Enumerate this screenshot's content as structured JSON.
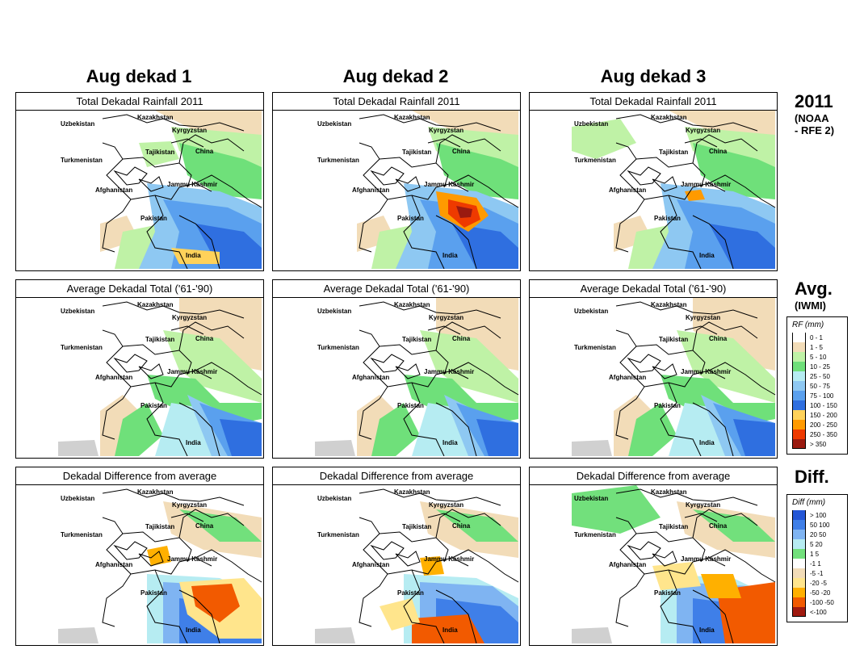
{
  "columns": [
    "Aug dekad 1",
    "Aug dekad 2",
    "Aug dekad 3"
  ],
  "rows": [
    {
      "key": "rfe",
      "title": "Total Dekadal Rainfall 2011"
    },
    {
      "key": "avg",
      "title": "Average Dekadal Total ('61-'90)"
    },
    {
      "key": "diff",
      "title": "Dekadal Difference from average"
    }
  ],
  "map_labels": [
    "Kazakhstan",
    "Uzbekistan",
    "Kyrgyzstan",
    "Tajikistan",
    "China",
    "Turkmenistan",
    "Afghanistan",
    "Jammu Kashmir",
    "Pakistan",
    "India"
  ],
  "side": {
    "rfe_title": "2011",
    "rfe_sub_1": "(NOAA",
    "rfe_sub_2": "- RFE 2)",
    "avg_title": "Avg.",
    "avg_sub": "(IWMI)",
    "diff_title": "Diff."
  },
  "rf_legend": {
    "title": "RF (mm)",
    "items": [
      {
        "label": "0 - 1",
        "color": "#ffffff"
      },
      {
        "label": "1 - 5",
        "color": "#f2dcb8"
      },
      {
        "label": "5 - 10",
        "color": "#bff2a6"
      },
      {
        "label": "10 - 25",
        "color": "#6fe07a"
      },
      {
        "label": "25 - 50",
        "color": "#b6ecf2"
      },
      {
        "label": "50 - 75",
        "color": "#8ec8f2"
      },
      {
        "label": "75 - 100",
        "color": "#5aa0ee"
      },
      {
        "label": "100 - 150",
        "color": "#2f6fe0"
      },
      {
        "label": "150 - 200",
        "color": "#ffd25a"
      },
      {
        "label": "200 - 250",
        "color": "#ff9a00"
      },
      {
        "label": "250 - 350",
        "color": "#ee3a00"
      },
      {
        "label": "> 350",
        "color": "#9a1a10"
      }
    ]
  },
  "diff_legend": {
    "title": "Diff (mm)",
    "items": [
      {
        "label": "> 100",
        "color": "#2456d6"
      },
      {
        "label": "50   100",
        "color": "#3f7fe8"
      },
      {
        "label": "20   50",
        "color": "#7fb4f2"
      },
      {
        "label": "5   20",
        "color": "#b6ecf2"
      },
      {
        "label": "1   5",
        "color": "#72e07c"
      },
      {
        "label": "-1   1",
        "color": "#ffffff"
      },
      {
        "label": "-5   -1",
        "color": "#f2dcb8"
      },
      {
        "label": "-20   -5",
        "color": "#ffe58c"
      },
      {
        "label": "-50   -20",
        "color": "#ffb000"
      },
      {
        "label": "-100   -50",
        "color": "#f25a00"
      },
      {
        "label": "<-100",
        "color": "#a01a10"
      }
    ]
  }
}
